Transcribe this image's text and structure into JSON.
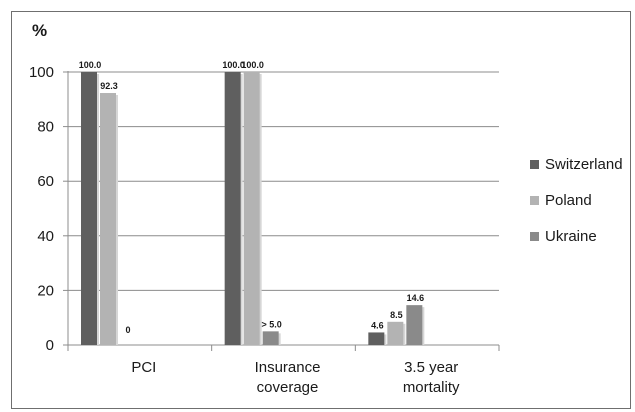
{
  "chart_data": {
    "type": "bar",
    "ylabel": "%",
    "ylim": [
      0,
      100
    ],
    "yticks": [
      0,
      20,
      40,
      60,
      80,
      100
    ],
    "grid": true,
    "legend_position": "right",
    "categories": [
      [
        "PCI"
      ],
      [
        "Insurance",
        "coverage"
      ],
      [
        "3.5 year",
        "mortality"
      ]
    ],
    "series": [
      {
        "name": "Switzerland",
        "color": "#5f5f5f",
        "values": [
          100.0,
          100.0,
          4.6
        ],
        "labels": [
          "100.0",
          "100.0",
          "4.6"
        ]
      },
      {
        "name": "Poland",
        "color": "#b3b3b3",
        "values": [
          92.3,
          100.0,
          8.5
        ],
        "labels": [
          "92.3",
          "100.0",
          "8.5"
        ]
      },
      {
        "name": "Ukraine",
        "color": "#8a8a8a",
        "values": [
          0,
          5.0,
          14.6
        ],
        "labels": [
          "0",
          "> 5.0",
          "14.6"
        ]
      }
    ]
  }
}
